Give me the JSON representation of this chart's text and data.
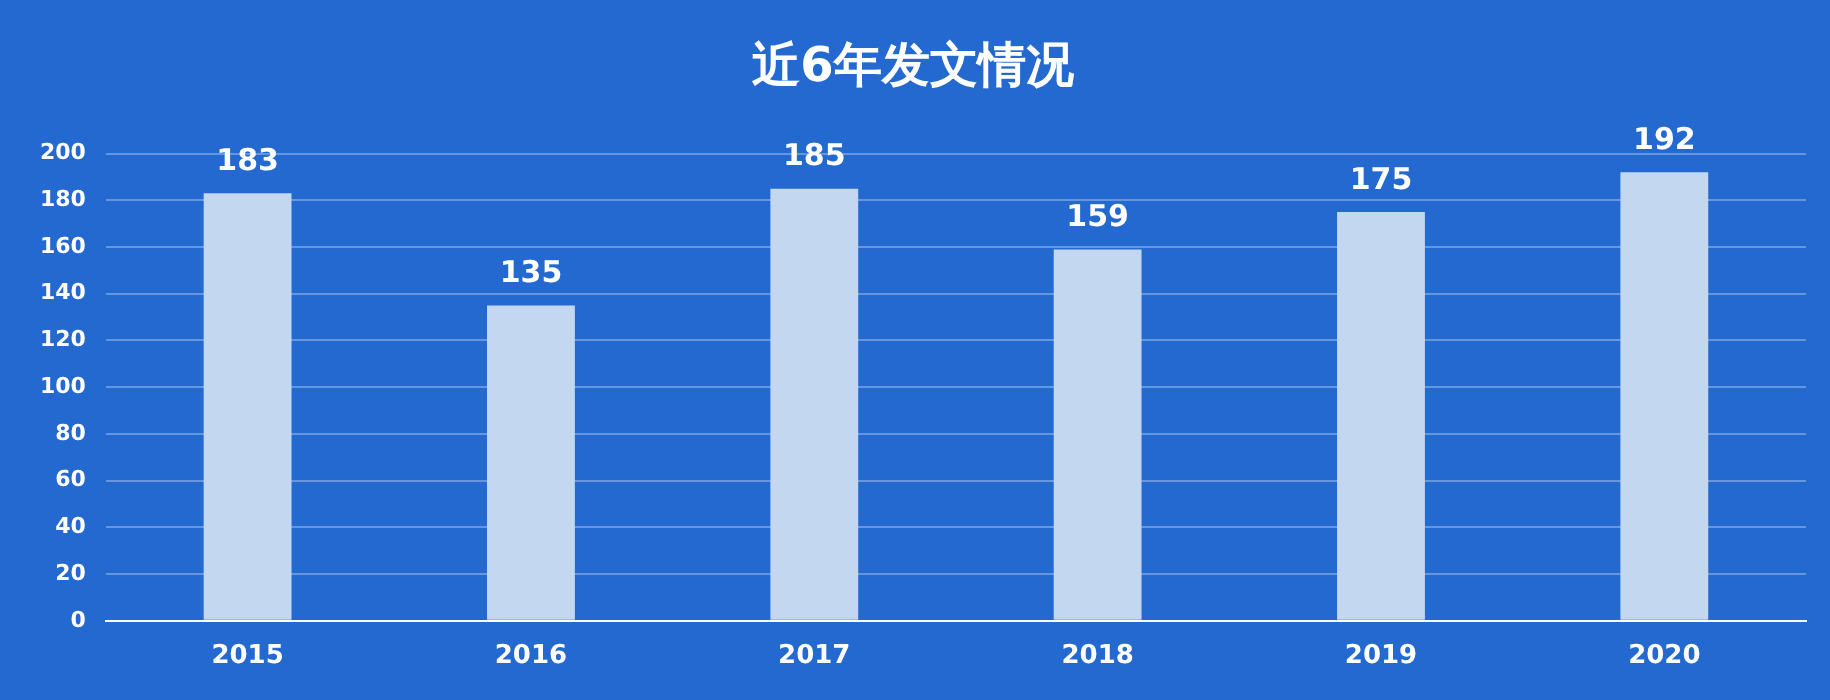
{
  "chart_data": {
    "type": "bar",
    "title": "近6年发文情况",
    "categories": [
      "2015",
      "2016",
      "2017",
      "2018",
      "2019",
      "2020"
    ],
    "values": [
      183,
      135,
      185,
      159,
      175,
      192
    ],
    "color": "#c3d8f0",
    "ylim": [
      0,
      200
    ],
    "yticks": [
      0,
      20,
      40,
      60,
      80,
      100,
      120,
      140,
      160,
      180,
      200
    ],
    "grid": "y",
    "data_labels": true,
    "legend": false
  }
}
